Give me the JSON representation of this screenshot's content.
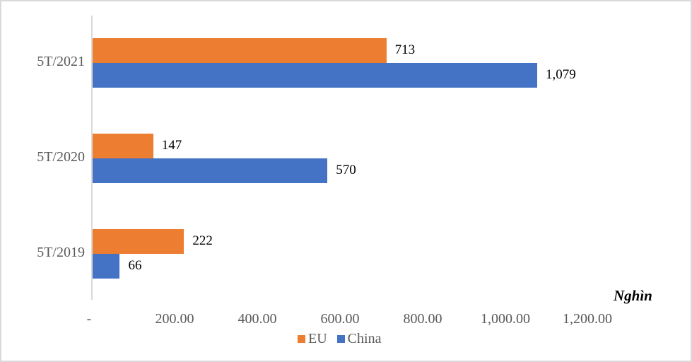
{
  "chart_data": {
    "type": "bar",
    "orientation": "horizontal",
    "categories": [
      "5T/2021",
      "5T/2020",
      "5T/2019"
    ],
    "series": [
      {
        "name": "EU",
        "color": "#ED7D31",
        "values": [
          713,
          147,
          222
        ],
        "labels": [
          "713",
          "147",
          "222"
        ]
      },
      {
        "name": "China",
        "color": "#4472C4",
        "values": [
          1079,
          570,
          66
        ],
        "labels": [
          "1,079",
          "570",
          "66"
        ]
      }
    ],
    "x_ticks": [
      "-",
      "200.00",
      "400.00",
      "600.00",
      "800.00",
      "1,000.00",
      "1,200.00"
    ],
    "xlim": [
      0,
      1200
    ],
    "unit_label": "Nghìn",
    "title": "",
    "xlabel": "",
    "ylabel": "",
    "grid": false,
    "legend_position": "bottom"
  }
}
